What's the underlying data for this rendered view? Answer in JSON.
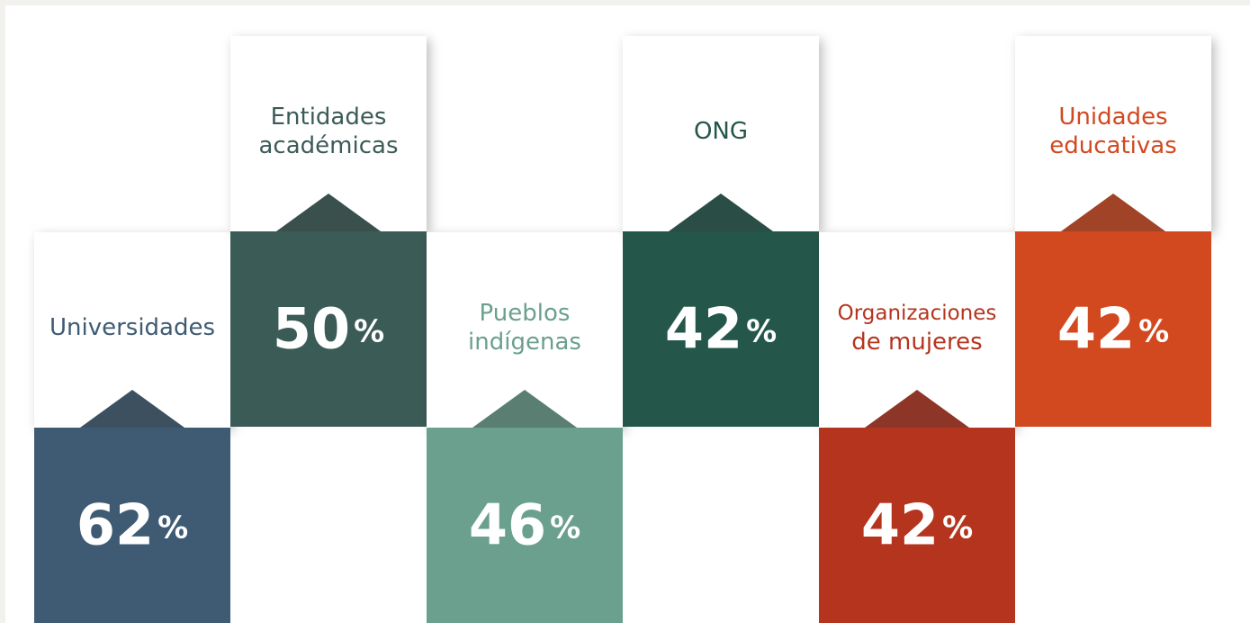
{
  "items": [
    {
      "label": [
        "Universidades"
      ],
      "number": "62",
      "unit": "%",
      "color": "#3f5b73"
    },
    {
      "label": [
        "Entidades",
        "académicas"
      ],
      "number": "50",
      "unit": "%",
      "color": "#3b5b57"
    },
    {
      "label": [
        "Pueblos",
        "indígenas"
      ],
      "number": "46",
      "unit": "%",
      "color": "#6ba08e"
    },
    {
      "label": [
        "ONG"
      ],
      "number": "42",
      "unit": "%",
      "color": "#24574a"
    },
    {
      "label": [
        "Organizaciones",
        "de mujeres"
      ],
      "number": "42",
      "unit": "%",
      "color": "#b5341e"
    },
    {
      "label": [
        "Unidades",
        "educativas"
      ],
      "number": "42",
      "unit": "%",
      "color": "#d2481f"
    }
  ]
}
